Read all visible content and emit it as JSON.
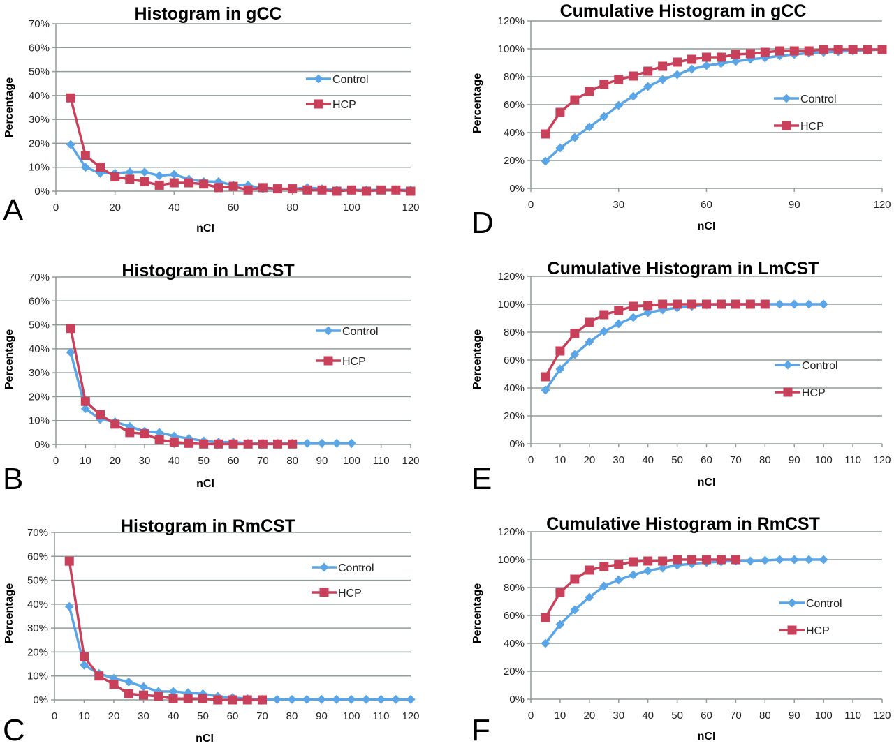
{
  "figure": {
    "colors": {
      "control": "#5aa5e6",
      "hcp": "#c8405a",
      "grid": "#8f9c9a",
      "axis": "#8f9c9a"
    }
  },
  "chart_data": [
    {
      "id": "A",
      "panel_label": "A",
      "type": "line",
      "title": "Histogram in gCC",
      "xlabel": "nCI",
      "ylabel": "Percentage",
      "xlim": [
        0,
        120
      ],
      "ylim": [
        0,
        70
      ],
      "xticks": [
        0,
        20,
        40,
        60,
        80,
        100,
        120
      ],
      "yticks": [
        0,
        10,
        20,
        30,
        40,
        50,
        60,
        70
      ],
      "ytick_suffix": "%",
      "grid": true,
      "legend": "right",
      "series": [
        {
          "name": "Control",
          "marker": "diamond",
          "x": [
            5,
            10,
            15,
            20,
            25,
            30,
            35,
            40,
            45,
            50,
            55,
            60,
            65,
            70,
            75,
            80,
            85,
            90,
            95,
            100,
            105,
            110,
            115,
            120
          ],
          "y": [
            19.5,
            10,
            7.5,
            7.5,
            8,
            8,
            6.5,
            7,
            5,
            4,
            4,
            2.5,
            2.5,
            1,
            1,
            1,
            1.5,
            1,
            0.5,
            0.5,
            0.5,
            0.5,
            0.5,
            0.5
          ]
        },
        {
          "name": "HCP",
          "marker": "square",
          "x": [
            5,
            10,
            15,
            20,
            25,
            30,
            35,
            40,
            45,
            50,
            55,
            60,
            65,
            70,
            75,
            80,
            85,
            90,
            95,
            100,
            105,
            110,
            115,
            120
          ],
          "y": [
            39,
            15,
            10,
            6,
            5,
            4,
            2.5,
            3.5,
            3.5,
            3,
            1.5,
            2,
            0.5,
            1.5,
            1,
            1,
            0.5,
            0.5,
            0,
            0.5,
            0,
            0.5,
            0.5,
            0
          ]
        }
      ]
    },
    {
      "id": "D",
      "panel_label": "D",
      "type": "line",
      "title": "Cumulative Histogram in gCC",
      "xlabel": "nCI",
      "ylabel": "Percentage",
      "xlim": [
        0,
        120
      ],
      "ylim": [
        0,
        120
      ],
      "xticks": [
        0,
        30,
        60,
        90,
        120
      ],
      "yticks": [
        0,
        20,
        40,
        60,
        80,
        100,
        120
      ],
      "ytick_suffix": "%",
      "grid": true,
      "legend": "right",
      "series": [
        {
          "name": "Control",
          "marker": "diamond",
          "x": [
            5,
            10,
            15,
            20,
            25,
            30,
            35,
            40,
            45,
            50,
            55,
            60,
            65,
            70,
            75,
            80,
            85,
            90,
            95,
            100,
            105,
            110,
            115,
            120
          ],
          "y": [
            19.5,
            29,
            36.5,
            44,
            51.5,
            59.5,
            66,
            73,
            78,
            81.5,
            85.5,
            88,
            89.5,
            91,
            92.5,
            93.5,
            95,
            96,
            97,
            97.5,
            98,
            98.5,
            99,
            99.5
          ]
        },
        {
          "name": "HCP",
          "marker": "square",
          "x": [
            5,
            10,
            15,
            20,
            25,
            30,
            35,
            40,
            45,
            50,
            55,
            60,
            65,
            70,
            75,
            80,
            85,
            90,
            95,
            100,
            105,
            110,
            115,
            120
          ],
          "y": [
            39,
            54.5,
            63.5,
            69.5,
            74.5,
            78,
            80.5,
            84,
            87.5,
            90.5,
            92.5,
            94,
            94,
            96,
            96.5,
            97.5,
            98.5,
            98.5,
            98.5,
            99.5,
            99.5,
            99.5,
            99.5,
            99.5
          ]
        }
      ]
    },
    {
      "id": "B",
      "panel_label": "B",
      "type": "line",
      "title": "Histogram in LmCST",
      "xlabel": "nCI",
      "ylabel": "Percentage",
      "xlim": [
        0,
        120
      ],
      "ylim": [
        0,
        70
      ],
      "xticks": [
        0,
        10,
        20,
        30,
        40,
        50,
        60,
        70,
        80,
        90,
        100,
        110,
        120
      ],
      "yticks": [
        0,
        10,
        20,
        30,
        40,
        50,
        60,
        70
      ],
      "ytick_suffix": "%",
      "grid": true,
      "legend": "right",
      "series": [
        {
          "name": "Control",
          "marker": "diamond",
          "x": [
            5,
            10,
            15,
            20,
            25,
            30,
            35,
            40,
            45,
            50,
            55,
            60,
            65,
            70,
            75,
            80,
            85,
            90,
            95,
            100
          ],
          "y": [
            38.5,
            15,
            10.5,
            9.5,
            7.5,
            5.5,
            5,
            3.5,
            2.5,
            1.5,
            1,
            1,
            0.5,
            0.5,
            0.5,
            0.5,
            0.5,
            0.5,
            0.5,
            0.5
          ]
        },
        {
          "name": "HCP",
          "marker": "square",
          "x": [
            5,
            10,
            15,
            20,
            25,
            30,
            35,
            40,
            45,
            50,
            55,
            60,
            65,
            70,
            75,
            80
          ],
          "y": [
            48.5,
            18,
            12.5,
            8.5,
            5,
            4.5,
            2,
            1,
            0.5,
            0.2,
            0.2,
            0.2,
            0.2,
            0.2,
            0.2,
            0.2
          ]
        }
      ]
    },
    {
      "id": "E",
      "panel_label": "E",
      "type": "line",
      "title": "Cumulative Histogram in LmCST",
      "xlabel": "nCI",
      "ylabel": "Percentage",
      "xlim": [
        0,
        120
      ],
      "ylim": [
        0,
        120
      ],
      "xticks": [
        0,
        10,
        20,
        30,
        40,
        50,
        60,
        70,
        80,
        90,
        100,
        110,
        120
      ],
      "yticks": [
        0,
        20,
        40,
        60,
        80,
        100,
        120
      ],
      "ytick_suffix": "%",
      "grid": true,
      "legend": "right",
      "series": [
        {
          "name": "Control",
          "marker": "diamond",
          "x": [
            5,
            10,
            15,
            20,
            25,
            30,
            35,
            40,
            45,
            50,
            55,
            60,
            65,
            70,
            75,
            80,
            85,
            90,
            95,
            100
          ],
          "y": [
            38.5,
            53.5,
            64,
            73,
            80.5,
            86,
            90.5,
            94,
            96,
            97.5,
            98.5,
            99.5,
            99.5,
            100,
            100,
            100,
            100,
            100,
            100,
            100
          ]
        },
        {
          "name": "HCP",
          "marker": "square",
          "x": [
            5,
            10,
            15,
            20,
            25,
            30,
            35,
            40,
            45,
            50,
            55,
            60,
            65,
            70,
            75,
            80
          ],
          "y": [
            48,
            66.5,
            79,
            87,
            92.5,
            95.5,
            98.5,
            99,
            100,
            100,
            100,
            100,
            100,
            100,
            100,
            100
          ]
        }
      ]
    },
    {
      "id": "C",
      "panel_label": "C",
      "type": "line",
      "title": "Histogram in RmCST",
      "xlabel": "nCI",
      "ylabel": "Percentage",
      "xlim": [
        0,
        120
      ],
      "ylim": [
        0,
        70
      ],
      "xticks": [
        0,
        10,
        20,
        30,
        40,
        50,
        60,
        70,
        80,
        90,
        100,
        110,
        120
      ],
      "yticks": [
        0,
        10,
        20,
        30,
        40,
        50,
        60,
        70
      ],
      "ytick_suffix": "%",
      "grid": true,
      "legend": "right",
      "series": [
        {
          "name": "Control",
          "marker": "diamond",
          "x": [
            5,
            10,
            15,
            20,
            25,
            30,
            35,
            40,
            45,
            50,
            55,
            60,
            65,
            70,
            75,
            80,
            85,
            90,
            95,
            100,
            105,
            110,
            115,
            120
          ],
          "y": [
            39,
            14.5,
            11,
            9,
            7.5,
            5.5,
            3.5,
            3.5,
            3,
            2.5,
            1.5,
            1,
            0.5,
            0.2,
            0.2,
            0.2,
            0.2,
            0.2,
            0.2,
            0.2,
            0.2,
            0.2,
            0.2,
            0.2
          ]
        },
        {
          "name": "HCP",
          "marker": "square",
          "x": [
            5,
            10,
            15,
            20,
            25,
            30,
            35,
            40,
            45,
            50,
            55,
            60,
            65,
            70
          ],
          "y": [
            58,
            18,
            10,
            6.5,
            2.5,
            2,
            1.5,
            0.5,
            0.5,
            0.5,
            0,
            0,
            0,
            0
          ]
        }
      ]
    },
    {
      "id": "F",
      "panel_label": "F",
      "type": "line",
      "title": "Cumulative Histogram in RmCST",
      "xlabel": "nCI",
      "ylabel": "Percentage",
      "xlim": [
        0,
        120
      ],
      "ylim": [
        0,
        120
      ],
      "xticks": [
        0,
        10,
        20,
        30,
        40,
        50,
        60,
        70,
        80,
        90,
        100,
        110,
        120
      ],
      "yticks": [
        0,
        20,
        40,
        60,
        80,
        100,
        120
      ],
      "ytick_suffix": "%",
      "grid": true,
      "legend": "right",
      "series": [
        {
          "name": "Control",
          "marker": "diamond",
          "x": [
            5,
            10,
            15,
            20,
            25,
            30,
            35,
            40,
            45,
            50,
            55,
            60,
            65,
            70,
            75,
            80,
            85,
            90,
            95,
            100
          ],
          "y": [
            40,
            53.5,
            64,
            73,
            81,
            85.5,
            89,
            92,
            94,
            96,
            97,
            98,
            98.5,
            99,
            99,
            99.5,
            100,
            100,
            100,
            100
          ]
        },
        {
          "name": "HCP",
          "marker": "square",
          "x": [
            5,
            10,
            15,
            20,
            25,
            30,
            35,
            40,
            45,
            50,
            55,
            60,
            65,
            70
          ],
          "y": [
            58.5,
            76.5,
            86,
            92.5,
            95,
            96.5,
            98.5,
            99,
            99,
            100,
            100,
            100,
            100,
            100
          ]
        }
      ]
    }
  ]
}
